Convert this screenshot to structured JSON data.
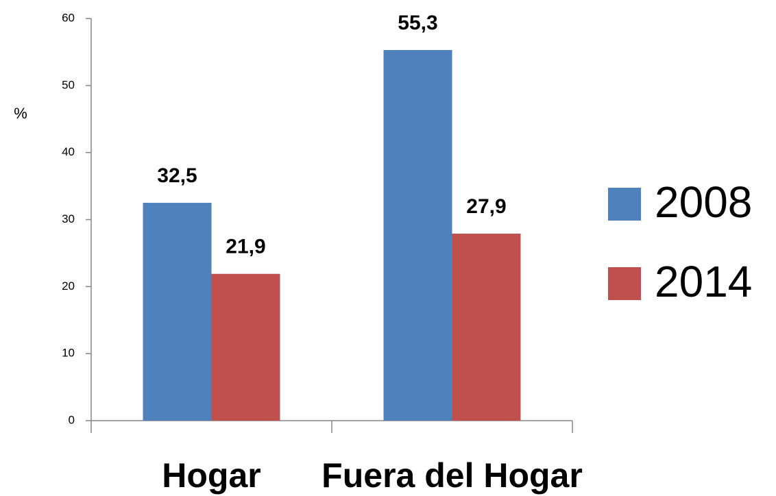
{
  "chart_data": {
    "type": "bar",
    "y_label": "%",
    "categories": [
      "Hogar",
      "Fuera del Hogar"
    ],
    "series": [
      {
        "name": "2008",
        "color": "#4f81bd",
        "values": [
          32.5,
          55.3
        ],
        "value_labels": [
          "32,5",
          "55,3"
        ]
      },
      {
        "name": "2014",
        "color": "#c0504d",
        "values": [
          21.9,
          27.9
        ],
        "value_labels": [
          "21,9",
          "27,9"
        ]
      }
    ],
    "ylim": [
      0,
      60
    ],
    "yticks": [
      0,
      10,
      20,
      30,
      40,
      50,
      60
    ],
    "grid": false,
    "legend": "right"
  }
}
